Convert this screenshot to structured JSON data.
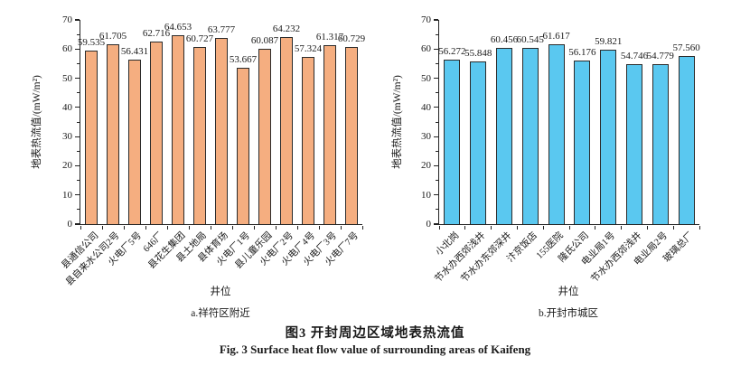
{
  "figure": {
    "caption_zh": "图3  开封周边区域地表热流值",
    "caption_en": "Fig. 3  Surface heat flow value of surrounding areas of Kaifeng"
  },
  "chart_data": [
    {
      "type": "bar",
      "subcaption": "a.祥符区附近",
      "xlabel": "井位",
      "ylabel": "地表热流值/(mW/m²)",
      "ylim": [
        0,
        70
      ],
      "yticks": [
        0,
        10,
        20,
        30,
        40,
        50,
        60,
        70
      ],
      "minor_tick_step": 5,
      "grid": false,
      "legend": "none",
      "bar_color": "#F5AE80",
      "bar_border_color": "#2b2b2b",
      "value_label_decimals": 3,
      "categories": [
        "县通信公司",
        "县自来水公司2号",
        "火电厂5号",
        "646厂",
        "县花生集团",
        "县土地局",
        "县体育场",
        "火电厂1号",
        "县儿童乐园",
        "火电厂2号",
        "火电厂4号",
        "火电厂3号",
        "火电厂7号"
      ],
      "values": [
        59.535,
        61.705,
        56.431,
        62.716,
        64.653,
        60.727,
        63.777,
        53.667,
        60.087,
        64.232,
        57.324,
        61.317,
        60.729
      ]
    },
    {
      "type": "bar",
      "subcaption": "b.开封市城区",
      "xlabel": "井位",
      "ylabel": "地表热流值/(mW/m²)",
      "ylim": [
        0,
        70
      ],
      "yticks": [
        0,
        10,
        20,
        30,
        40,
        50,
        60,
        70
      ],
      "minor_tick_step": 5,
      "grid": false,
      "legend": "none",
      "bar_color": "#5AC8F0",
      "bar_border_color": "#2b2b2b",
      "value_label_decimals": 3,
      "categories": [
        "小北岗",
        "节水办西郊浅井",
        "节水办东郊深井",
        "汴京饭店",
        "155医院",
        "隆氏公司",
        "电业局1号",
        "节水办西郊浅井",
        "电业局2号",
        "玻璃总厂"
      ],
      "values": [
        56.272,
        55.848,
        60.456,
        60.545,
        61.617,
        56.176,
        59.821,
        54.746,
        54.779,
        57.56
      ]
    }
  ]
}
